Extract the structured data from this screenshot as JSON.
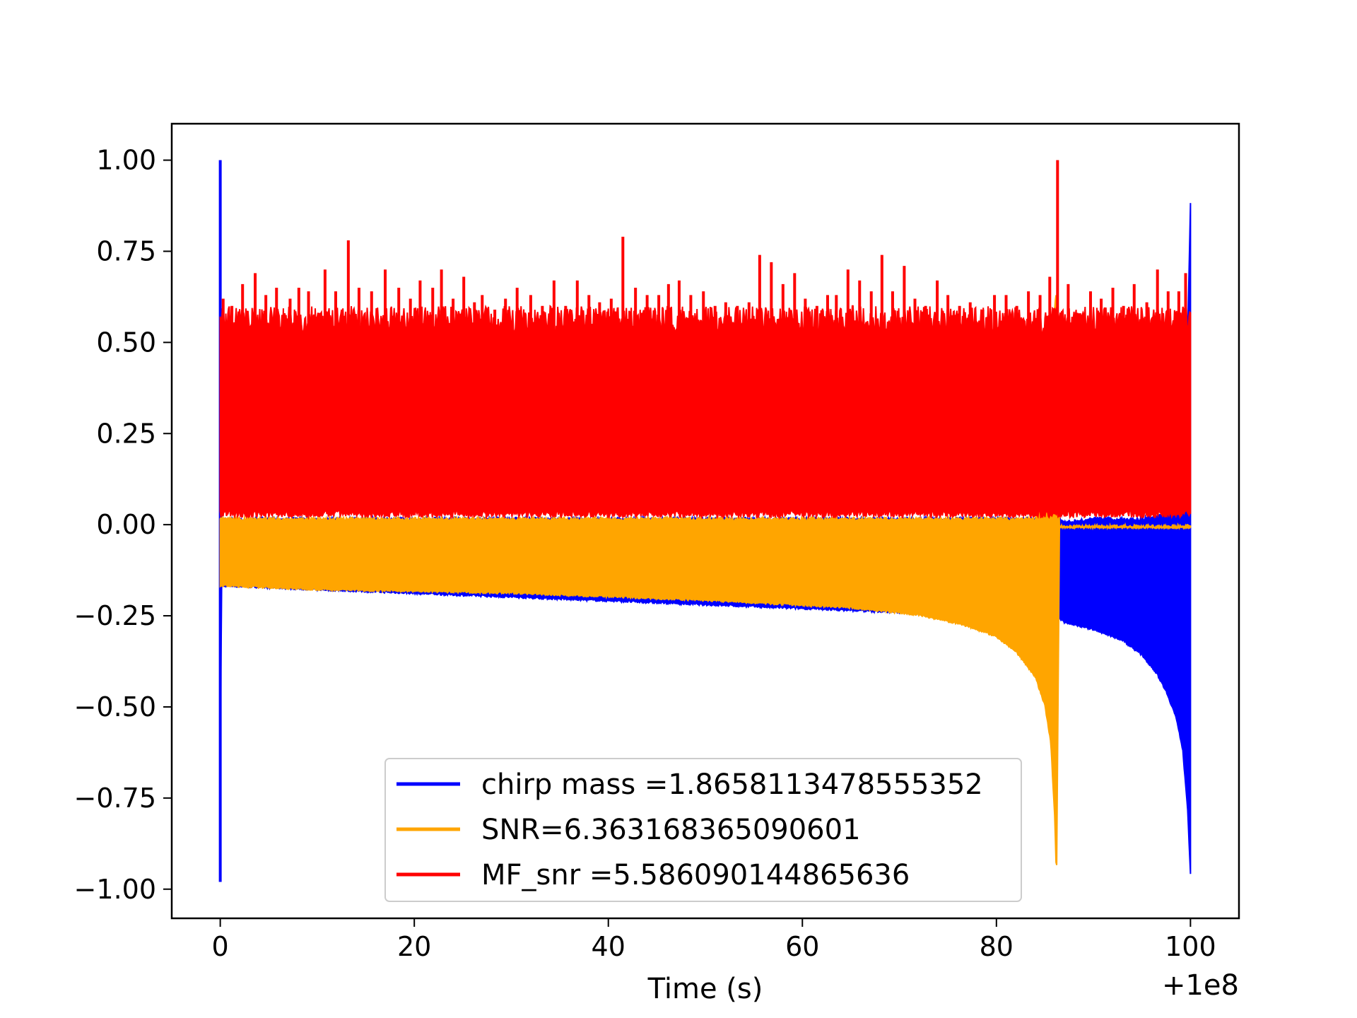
{
  "chart_data": {
    "type": "line",
    "title": "",
    "xlabel": "Time (s)",
    "ylabel": "",
    "x_offset_label": "+1e8",
    "xlim": [
      -5,
      105
    ],
    "ylim": [
      -1.08,
      1.1
    ],
    "xticks": [
      0,
      20,
      40,
      60,
      80,
      100
    ],
    "xtick_labels": [
      "0",
      "20",
      "40",
      "60",
      "80",
      "100"
    ],
    "yticks": [
      1.0,
      0.75,
      0.5,
      0.25,
      0.0,
      -0.25,
      -0.5,
      -0.75,
      -1.0
    ],
    "ytick_labels": [
      "1.00",
      "0.75",
      "0.50",
      "0.25",
      "0.00",
      "−0.25",
      "−0.50",
      "−0.75",
      "−1.00"
    ],
    "grid": false,
    "legend_position": "lower-center",
    "series": [
      {
        "name": "chirp mass =1.8658113478555352",
        "color": "#0000ff",
        "envelope": {
          "x": [
            0,
            0.1,
            86.5,
            87,
            90,
            93,
            95,
            96.5,
            97.5,
            98.5,
            99.2,
            99.7,
            100
          ],
          "upper": [
            1.0,
            0.02,
            0.02,
            0.01,
            0.02,
            0.02,
            0.02,
            0.03,
            0.03,
            0.04,
            0.15,
            0.5,
            0.89
          ],
          "lower": [
            -0.98,
            -0.17,
            -0.26,
            -0.27,
            -0.29,
            -0.32,
            -0.36,
            -0.41,
            -0.46,
            -0.53,
            -0.62,
            -0.78,
            -0.96
          ]
        }
      },
      {
        "name": "SNR=6.363168365090601",
        "color": "#ffa500",
        "envelope": {
          "x": [
            0,
            0.1,
            10,
            30,
            50,
            65,
            72,
            77,
            80,
            82,
            84,
            85,
            85.6,
            86.0,
            86.2,
            86.5,
            87,
            100
          ],
          "upper": [
            0.02,
            0.02,
            0.02,
            0.02,
            0.02,
            0.02,
            0.02,
            0.02,
            0.02,
            0.02,
            0.02,
            0.1,
            0.3,
            0.6,
            0.65,
            0.0,
            0.0,
            0.0
          ],
          "lower": [
            -0.17,
            -0.17,
            -0.18,
            -0.19,
            -0.21,
            -0.23,
            -0.25,
            -0.28,
            -0.31,
            -0.35,
            -0.42,
            -0.5,
            -0.6,
            -0.8,
            -0.98,
            -0.01,
            -0.01,
            -0.01
          ]
        }
      },
      {
        "name": "MF_snr =5.586090144865636",
        "color": "#ff0000",
        "envelope": {
          "x": [
            0,
            100
          ],
          "upper": [
            0.6,
            0.6
          ],
          "lower": [
            0.02,
            0.02
          ]
        },
        "spikes": [
          [
            0.3,
            0.62
          ],
          [
            1.2,
            0.6
          ],
          [
            2.3,
            0.66
          ],
          [
            3.6,
            0.69
          ],
          [
            4.7,
            0.63
          ],
          [
            5.8,
            0.65
          ],
          [
            7.2,
            0.62
          ],
          [
            8.1,
            0.65
          ],
          [
            9.1,
            0.64
          ],
          [
            10.8,
            0.7
          ],
          [
            11.9,
            0.64
          ],
          [
            13.2,
            0.78
          ],
          [
            14.3,
            0.65
          ],
          [
            15.6,
            0.64
          ],
          [
            17.0,
            0.7
          ],
          [
            18.4,
            0.65
          ],
          [
            19.6,
            0.62
          ],
          [
            20.6,
            0.67
          ],
          [
            21.9,
            0.65
          ],
          [
            22.8,
            0.7
          ],
          [
            24.0,
            0.62
          ],
          [
            25.1,
            0.68
          ],
          [
            26.2,
            0.61
          ],
          [
            27.0,
            0.63
          ],
          [
            28.3,
            0.59
          ],
          [
            29.4,
            0.62
          ],
          [
            30.6,
            0.65
          ],
          [
            32.0,
            0.63
          ],
          [
            33.2,
            0.6
          ],
          [
            34.4,
            0.67
          ],
          [
            35.6,
            0.6
          ],
          [
            36.8,
            0.67
          ],
          [
            38.0,
            0.63
          ],
          [
            39.1,
            0.61
          ],
          [
            40.3,
            0.62
          ],
          [
            41.5,
            0.79
          ],
          [
            42.8,
            0.65
          ],
          [
            44.0,
            0.63
          ],
          [
            45.2,
            0.63
          ],
          [
            46.2,
            0.66
          ],
          [
            47.3,
            0.67
          ],
          [
            48.5,
            0.63
          ],
          [
            49.8,
            0.64
          ],
          [
            51.0,
            0.6
          ],
          [
            52.1,
            0.61
          ],
          [
            53.3,
            0.6
          ],
          [
            54.5,
            0.61
          ],
          [
            55.6,
            0.74
          ],
          [
            56.8,
            0.72
          ],
          [
            58.0,
            0.66
          ],
          [
            59.2,
            0.69
          ],
          [
            60.3,
            0.62
          ],
          [
            61.5,
            0.6
          ],
          [
            62.6,
            0.63
          ],
          [
            63.5,
            0.63
          ],
          [
            64.7,
            0.7
          ],
          [
            65.9,
            0.67
          ],
          [
            67.1,
            0.64
          ],
          [
            68.2,
            0.74
          ],
          [
            69.3,
            0.64
          ],
          [
            70.5,
            0.71
          ],
          [
            71.6,
            0.62
          ],
          [
            72.7,
            0.6
          ],
          [
            73.9,
            0.67
          ],
          [
            75.0,
            0.63
          ],
          [
            76.2,
            0.6
          ],
          [
            77.3,
            0.61
          ],
          [
            78.6,
            0.59
          ],
          [
            79.8,
            0.63
          ],
          [
            81.0,
            0.63
          ],
          [
            82.1,
            0.6
          ],
          [
            83.3,
            0.64
          ],
          [
            84.5,
            0.63
          ],
          [
            85.5,
            0.68
          ],
          [
            86.3,
            1.0
          ],
          [
            87.4,
            0.66
          ],
          [
            88.6,
            0.58
          ],
          [
            89.7,
            0.64
          ],
          [
            90.8,
            0.62
          ],
          [
            92.0,
            0.65
          ],
          [
            93.1,
            0.6
          ],
          [
            94.2,
            0.66
          ],
          [
            95.5,
            0.61
          ],
          [
            96.6,
            0.7
          ],
          [
            97.7,
            0.64
          ],
          [
            98.8,
            0.64
          ],
          [
            99.5,
            0.69
          ]
        ]
      }
    ]
  }
}
